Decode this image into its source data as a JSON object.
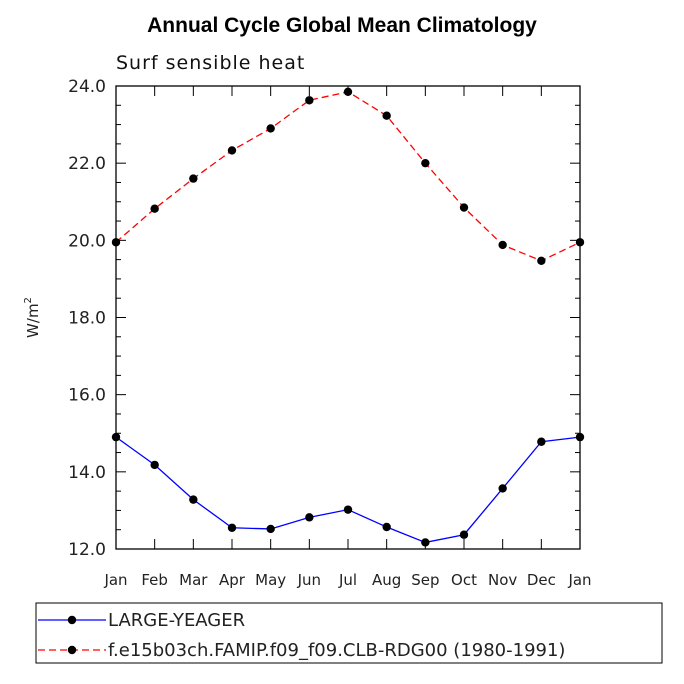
{
  "chart_data": {
    "type": "line",
    "title": "Annual Cycle Global Mean Climatology",
    "subtitle": "Surf sensible heat",
    "ylabel_base": "W/m",
    "ylabel_exp": "2",
    "xlabel": "",
    "categories": [
      "Jan",
      "Feb",
      "Mar",
      "Apr",
      "May",
      "Jun",
      "Jul",
      "Aug",
      "Sep",
      "Oct",
      "Nov",
      "Dec",
      "Jan"
    ],
    "ylim": [
      12.0,
      24.0
    ],
    "yticks": [
      "12.0",
      "14.0",
      "16.0",
      "18.0",
      "20.0",
      "22.0",
      "24.0"
    ],
    "series": [
      {
        "name": "LARGE-YEAGER",
        "color": "#0000ff",
        "dash": "solid",
        "values": [
          14.9,
          14.18,
          13.28,
          12.55,
          12.52,
          12.82,
          13.02,
          12.57,
          12.17,
          12.37,
          13.57,
          14.78,
          14.9
        ]
      },
      {
        "name": "f.e15b03ch.FAMIP.f09_f09.CLB-RDG00 (1980-1991)",
        "color": "#ff0000",
        "dash": "dashed",
        "values": [
          19.95,
          20.82,
          21.6,
          22.33,
          22.9,
          23.63,
          23.85,
          23.23,
          22.0,
          20.85,
          19.88,
          19.47,
          19.95
        ]
      }
    ]
  }
}
